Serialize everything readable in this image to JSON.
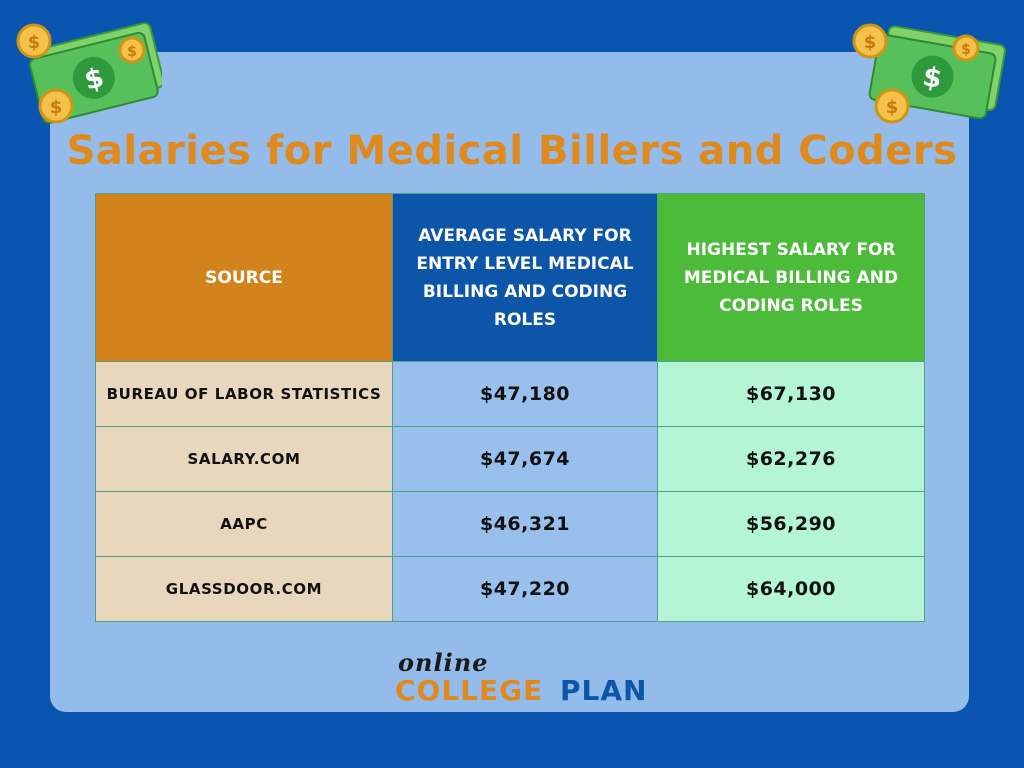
{
  "title": "Salaries for Medical Billers and Coders",
  "table": {
    "headers": {
      "source": "SOURCE",
      "avg": "AVERAGE SALARY FOR ENTRY LEVEL MEDICAL BILLING AND CODING ROLES",
      "high": "HIGHEST SALARY FOR MEDICAL BILLING AND CODING ROLES"
    },
    "rows": [
      {
        "source": "BUREAU OF LABOR STATISTICS",
        "avg": "$47,180",
        "high": "$67,130"
      },
      {
        "source": "SALARY.COM",
        "avg": "$47,674",
        "high": "$62,276"
      },
      {
        "source": "AAPC",
        "avg": "$46,321",
        "high": "$56,290"
      },
      {
        "source": "GLASSDOOR.COM",
        "avg": "$47,220",
        "high": "$64,000"
      }
    ]
  },
  "logo": {
    "online": "online",
    "college": "COLLEGE",
    "plan": "PLAN"
  },
  "decorations": {
    "left": "money-icon",
    "right": "money-icon"
  },
  "colors": {
    "background": "#0a55b0",
    "card": "#94bceb",
    "title": "#e08a1e",
    "source_header": "#d2831b",
    "avg_header": "#0c55a8",
    "high_header": "#4cbb3a",
    "source_cell": "#e8d6bd",
    "avg_cell": "#99bfec",
    "high_cell": "#b4f5d6"
  }
}
